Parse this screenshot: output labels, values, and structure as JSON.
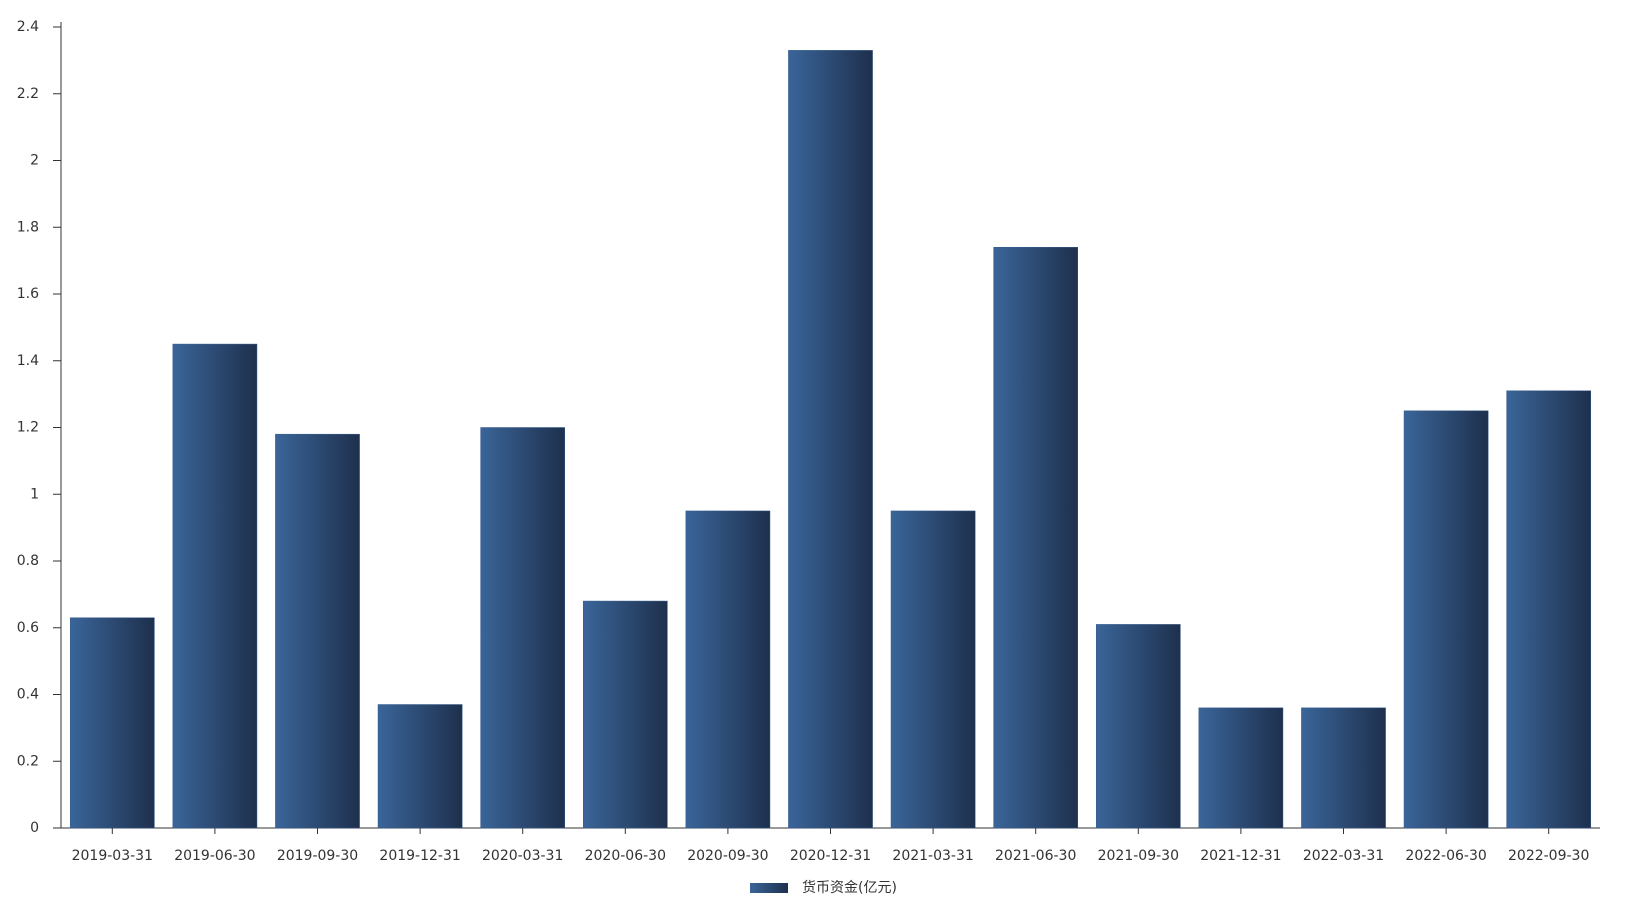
{
  "chart_data": {
    "type": "bar",
    "categories": [
      "2019-03-31",
      "2019-06-30",
      "2019-09-30",
      "2019-12-31",
      "2020-03-31",
      "2020-06-30",
      "2020-09-30",
      "2020-12-31",
      "2021-03-31",
      "2021-06-30",
      "2021-09-30",
      "2021-12-31",
      "2022-03-31",
      "2022-06-30",
      "2022-09-30"
    ],
    "series": [
      {
        "name": "货币资金(亿元)",
        "color": "#34598a",
        "values": [
          0.63,
          1.45,
          1.18,
          0.37,
          1.2,
          0.68,
          0.95,
          2.33,
          0.95,
          1.74,
          0.61,
          0.36,
          0.36,
          1.25,
          1.31
        ]
      }
    ],
    "ylim": [
      0,
      2.4
    ],
    "yticks": [
      0,
      0.2,
      0.4,
      0.6,
      0.8,
      1,
      1.2,
      1.4,
      1.6,
      1.8,
      2,
      2.2,
      2.4
    ],
    "legend": "bottom"
  }
}
